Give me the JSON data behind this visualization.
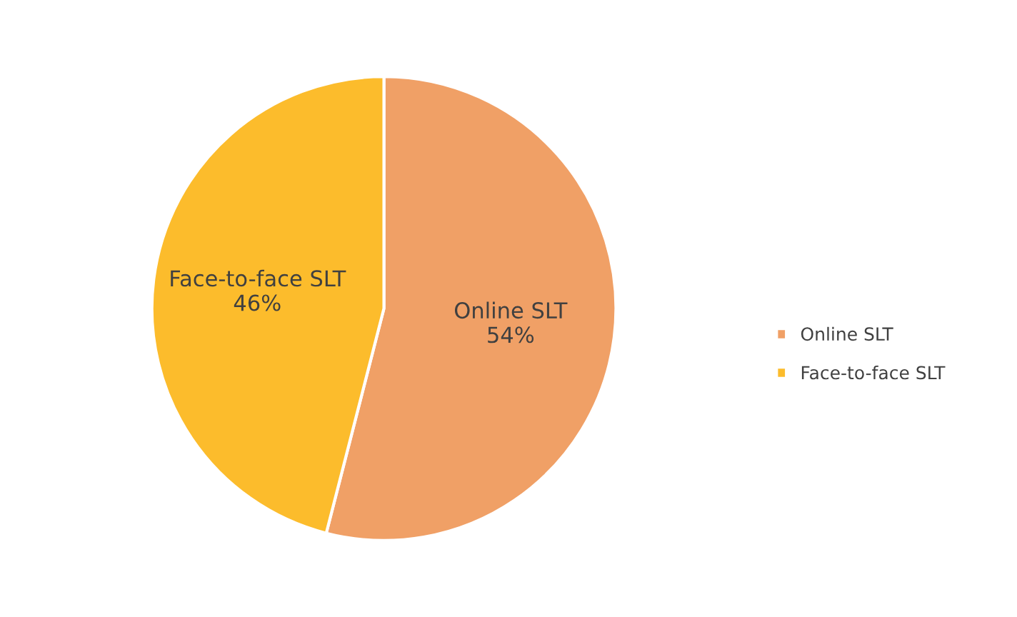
{
  "chart_data": {
    "type": "pie",
    "categories": [
      "Online SLT",
      "Face-to-face SLT"
    ],
    "values": [
      54,
      46
    ],
    "colors": [
      "#f0a066",
      "#fcbc2c"
    ],
    "value_labels": [
      "Online SLT\n54%",
      "Face-to-face SLT\n46%"
    ],
    "legend": "right"
  }
}
